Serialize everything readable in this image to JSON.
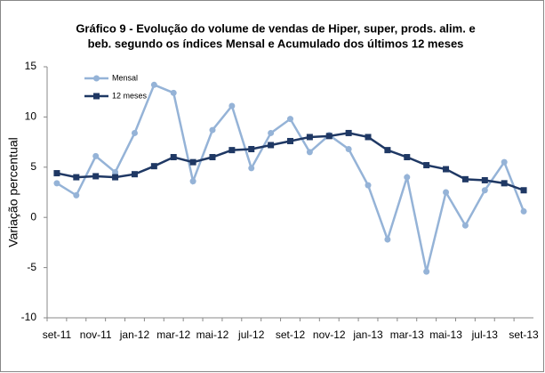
{
  "chart_data": {
    "type": "line",
    "title": [
      "Gráfico 9 - Evolução do volume de vendas de Hiper, super, prods. alim. e",
      "beb. segundo os índices Mensal e Acumulado  dos últimos  12 meses"
    ],
    "y_label": "Variação percentual",
    "categories": [
      "set-11",
      null,
      "nov-11",
      null,
      "jan-12",
      null,
      "mar-12",
      null,
      "mai-12",
      null,
      "jul-12",
      null,
      "set-12",
      null,
      "nov-12",
      null,
      "jan-13",
      null,
      "mar-13",
      null,
      "mai-13",
      null,
      "jul-13",
      null,
      "set-13"
    ],
    "series": [
      {
        "name": "Mensal",
        "color": "#95b3d7",
        "marker": "circle",
        "values": [
          3.4,
          2.2,
          6.1,
          4.5,
          8.4,
          13.2,
          12.4,
          3.6,
          8.7,
          11.1,
          4.9,
          8.4,
          9.8,
          6.5,
          8.2,
          6.8,
          3.2,
          -2.2,
          4.0,
          -5.4,
          2.5,
          -0.8,
          2.7,
          5.5,
          0.6
        ]
      },
      {
        "name": "12 meses",
        "color": "#1f3864",
        "marker": "square",
        "values": [
          4.4,
          4.0,
          4.1,
          4.0,
          4.3,
          5.1,
          6.0,
          5.5,
          6.0,
          6.7,
          6.8,
          7.2,
          7.6,
          8.0,
          8.1,
          8.4,
          8.0,
          6.7,
          6.0,
          5.2,
          4.8,
          3.8,
          3.7,
          3.4,
          2.7
        ]
      }
    ],
    "ylim": [
      -10,
      15
    ],
    "yticks": [
      -10,
      -5,
      0,
      5,
      10,
      15
    ],
    "grid": false
  }
}
